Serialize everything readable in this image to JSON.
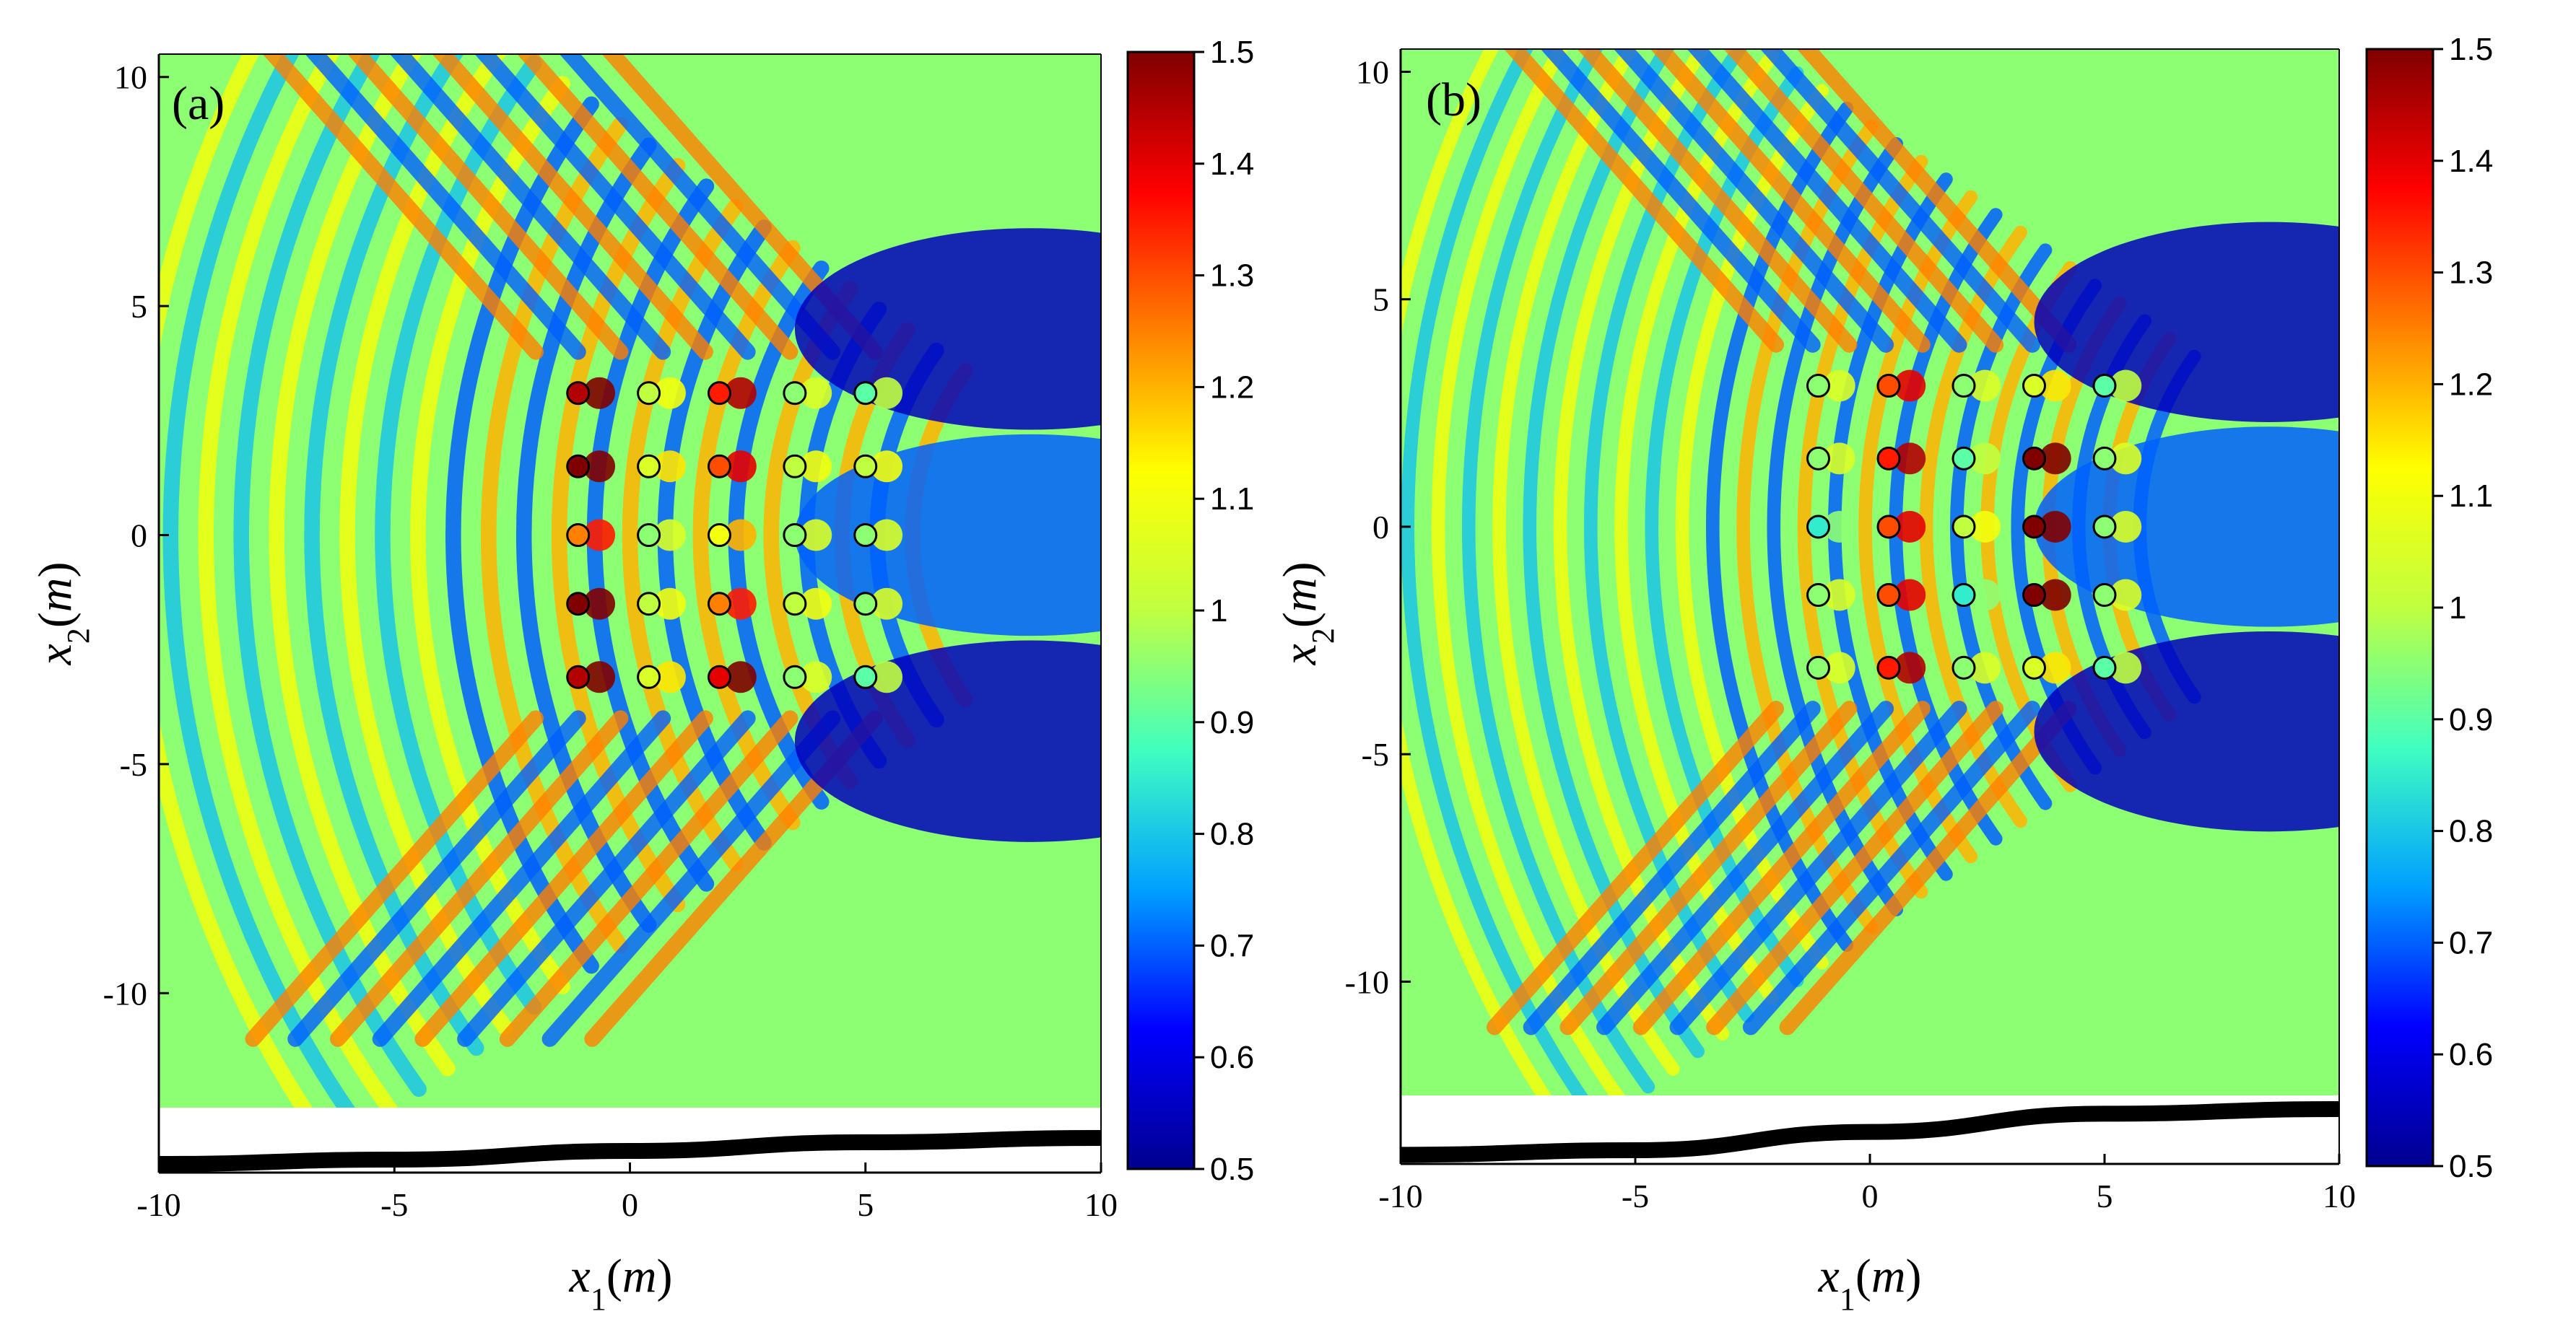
{
  "chart_data": [
    {
      "type": "heatmap",
      "panel_label": "(a)",
      "xlabel": "x1(m)",
      "ylabel": "x2(m)",
      "xlim": [
        -10,
        10
      ],
      "ylim": [
        -12.5,
        10.5
      ],
      "x_ticks": [
        "-10",
        "-5",
        "0",
        "5",
        "10"
      ],
      "y_ticks": [
        "10",
        "5",
        "0",
        "-5",
        "-10"
      ],
      "colorbar": {
        "min": 0.5,
        "max": 1.5,
        "ticks": [
          "1.5",
          "1.4",
          "1.3",
          "1.2",
          "1.1",
          "1",
          "0.9",
          "0.8",
          "0.7",
          "0.6",
          "0.5"
        ]
      },
      "colormap": [
        "#00008f",
        "#0000ff",
        "#00a0ff",
        "#40ffc0",
        "#c0ff40",
        "#ffff00",
        "#ff8000",
        "#ff0000",
        "#800000"
      ],
      "field_background": 0.95,
      "incident_wavelength_m": 1.5,
      "cylinders": {
        "x": [
          -1.1,
          0.4,
          1.9,
          3.5,
          5.0
        ],
        "y": [
          3.1,
          1.5,
          0,
          -1.5,
          -3.1
        ],
        "values": [
          [
            1.45,
            1.0,
            1.35,
            0.95,
            0.9
          ],
          [
            1.5,
            1.05,
            1.3,
            1.0,
            1.0
          ],
          [
            1.25,
            0.95,
            1.1,
            0.95,
            0.95
          ],
          [
            1.5,
            1.0,
            1.25,
            1.0,
            0.95
          ],
          [
            1.45,
            1.05,
            1.4,
            0.95,
            0.9
          ]
        ]
      },
      "bathymetry_profile": {
        "x": [
          -10,
          -5,
          0,
          5,
          10
        ],
        "depth": [
          -13.8,
          -13.7,
          -13.5,
          -13.3,
          -13.2
        ]
      }
    },
    {
      "type": "heatmap",
      "panel_label": "(b)",
      "xlabel": "x1(m)",
      "ylabel": "x2(m)",
      "xlim": [
        -10,
        10
      ],
      "ylim": [
        -12.5,
        10.5
      ],
      "x_ticks": [
        "-10",
        "-5",
        "0",
        "5",
        "10"
      ],
      "y_ticks": [
        "10",
        "5",
        "0",
        "-5",
        "-10"
      ],
      "colorbar": {
        "min": 0.5,
        "max": 1.5,
        "ticks": [
          "1.5",
          "1.4",
          "1.3",
          "1.2",
          "1.1",
          "1",
          "0.9",
          "0.8",
          "0.7",
          "0.6",
          "0.5"
        ]
      },
      "colormap": [
        "#00008f",
        "#0000ff",
        "#00a0ff",
        "#40ffc0",
        "#c0ff40",
        "#ffff00",
        "#ff8000",
        "#ff0000",
        "#800000"
      ],
      "field_background": 0.95,
      "incident_wavelength_m": 1.3,
      "cylinders": {
        "x": [
          -1.1,
          0.4,
          2.0,
          3.5,
          5.0
        ],
        "y": [
          3.1,
          1.5,
          0,
          -1.5,
          -3.1
        ],
        "values": [
          [
            0.95,
            1.3,
            0.95,
            1.05,
            0.9
          ],
          [
            0.95,
            1.35,
            0.9,
            1.5,
            0.95
          ],
          [
            0.85,
            1.3,
            1.0,
            1.5,
            0.95
          ],
          [
            0.95,
            1.3,
            0.85,
            1.5,
            0.95
          ],
          [
            0.95,
            1.35,
            0.95,
            1.05,
            0.9
          ]
        ]
      },
      "bathymetry_profile": {
        "x": [
          -10,
          -5,
          0,
          5,
          10
        ],
        "depth": [
          -13.8,
          -13.7,
          -13.3,
          -12.9,
          -12.8
        ]
      }
    }
  ]
}
